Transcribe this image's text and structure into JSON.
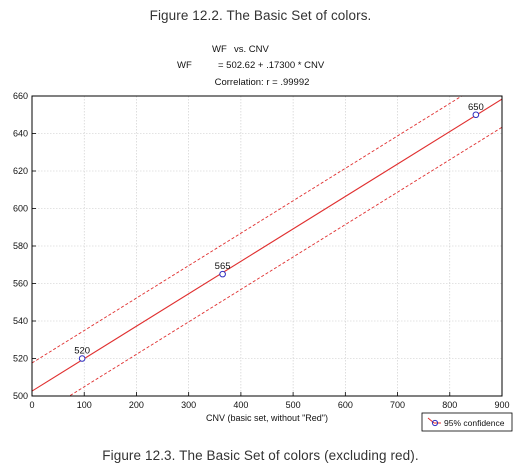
{
  "captions": {
    "top": "Figure 12.2. The Basic Set of colors.",
    "bottom": "Figure 12.3. The Basic Set of colors (excluding red)."
  },
  "chart_data": {
    "type": "scatter",
    "title_line1_left": "WF",
    "title_line1_right": "vs. CNV",
    "title_line2_left": "WF",
    "title_line2_right": "= 502.62 + .17300 * CNV",
    "title_line3": "Correlation: r = .99992",
    "xlabel": "CNV (basic set, without \"Red\")",
    "ylabel": "",
    "xlim": [
      0,
      900
    ],
    "ylim": [
      500,
      660
    ],
    "x_ticks": [
      0,
      100,
      200,
      300,
      400,
      500,
      600,
      700,
      800,
      900
    ],
    "y_ticks": [
      500,
      520,
      540,
      560,
      580,
      600,
      620,
      640,
      660
    ],
    "grid": true,
    "regression": {
      "intercept": 502.62,
      "slope": 0.173
    },
    "confidence_band": {
      "lower_shift": -15,
      "upper_shift": 15
    },
    "points": [
      {
        "x": 96,
        "y": 520,
        "label": "520"
      },
      {
        "x": 365,
        "y": 565,
        "label": "565"
      },
      {
        "x": 850,
        "y": 650,
        "label": "650"
      }
    ],
    "legend": {
      "label": "95% confidence",
      "position": "bottom-right"
    },
    "colors": {
      "fit": "#e03030",
      "marker": "#3030c0",
      "grid": "#c8c8c8"
    }
  }
}
